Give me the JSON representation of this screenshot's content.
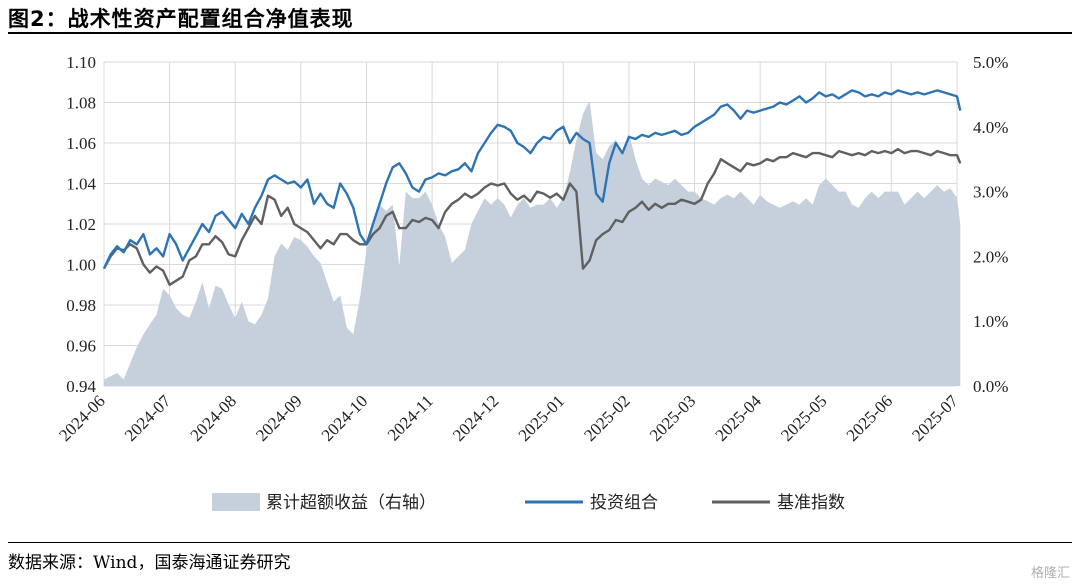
{
  "figure": {
    "title": "图2：战术性资产配置组合净值表现",
    "source": "数据来源：Wind，国泰海通证券研究",
    "watermark": "格隆汇"
  },
  "chart_data": {
    "type": "line+area",
    "title": "图2：战术性资产配置组合净值表现",
    "x_ticks": [
      "2024-06",
      "2024-07",
      "2024-08",
      "2024-09",
      "2024-10",
      "2024-11",
      "2024-12",
      "2025-01",
      "2025-02",
      "2025-03",
      "2025-04",
      "2025-05",
      "2025-06",
      "2025-07"
    ],
    "y_left": {
      "min": 0.94,
      "max": 1.1,
      "ticks": [
        "0.94",
        "0.96",
        "0.98",
        "1.00",
        "1.02",
        "1.04",
        "1.06",
        "1.08",
        "1.10"
      ]
    },
    "y_right": {
      "min": 0.0,
      "max": 5.0,
      "ticks": [
        "0.0%",
        "1.0%",
        "2.0%",
        "3.0%",
        "4.0%",
        "5.0%"
      ]
    },
    "grid": true,
    "legend_position": "bottom",
    "colors": {
      "area": "#c5d0dc",
      "portfolio": "#2e74b5",
      "benchmark": "#606060"
    },
    "series": [
      {
        "name": "累计超额收益（右轴）",
        "axis": "right",
        "kind": "area",
        "x": [
          0,
          0.1,
          0.2,
          0.3,
          0.4,
          0.5,
          0.6,
          0.7,
          0.8,
          0.9,
          1.0,
          1.1,
          1.2,
          1.3,
          1.4,
          1.5,
          1.6,
          1.7,
          1.8,
          1.9,
          2.0,
          2.1,
          2.2,
          2.3,
          2.4,
          2.5,
          2.6,
          2.7,
          2.8,
          2.9,
          3.0,
          3.1,
          3.2,
          3.3,
          3.4,
          3.5,
          3.6,
          3.7,
          3.8,
          3.9,
          4.0,
          4.1,
          4.2,
          4.3,
          4.4,
          4.5,
          4.6,
          4.7,
          4.8,
          4.9,
          5.0,
          5.1,
          5.2,
          5.3,
          5.4,
          5.5,
          5.6,
          5.7,
          5.8,
          5.9,
          6.0,
          6.1,
          6.2,
          6.3,
          6.4,
          6.5,
          6.6,
          6.7,
          6.8,
          6.9,
          7.0,
          7.1,
          7.2,
          7.3,
          7.4,
          7.5,
          7.6,
          7.7,
          7.8,
          7.9,
          8.0,
          8.1,
          8.2,
          8.3,
          8.4,
          8.5,
          8.6,
          8.7,
          8.8,
          8.9,
          9.0,
          9.1,
          9.2,
          9.3,
          9.4,
          9.5,
          9.6,
          9.7,
          9.8,
          9.9,
          10.0,
          10.1,
          10.2,
          10.3,
          10.4,
          10.5,
          10.6,
          10.7,
          10.8,
          10.9,
          11.0,
          11.1,
          11.2,
          11.3,
          11.4,
          11.5,
          11.6,
          11.7,
          11.8,
          11.9,
          12.0,
          12.1,
          12.2,
          12.3,
          12.4,
          12.5,
          12.6,
          12.7,
          12.8,
          12.9,
          13.0,
          13.05
        ],
        "values": [
          0.1,
          0.15,
          0.2,
          0.1,
          0.35,
          0.6,
          0.8,
          0.95,
          1.1,
          1.5,
          1.4,
          1.2,
          1.1,
          1.05,
          1.3,
          1.6,
          1.2,
          1.55,
          1.5,
          1.25,
          1.05,
          1.3,
          1.0,
          0.95,
          1.1,
          1.35,
          2.0,
          2.2,
          2.1,
          2.3,
          2.25,
          2.15,
          2.0,
          1.9,
          1.6,
          1.3,
          1.4,
          0.9,
          0.8,
          1.35,
          2.1,
          2.5,
          2.8,
          2.7,
          2.8,
          1.85,
          3.0,
          2.9,
          2.9,
          3.0,
          2.8,
          2.5,
          2.3,
          1.9,
          2.0,
          2.1,
          2.5,
          2.7,
          2.9,
          2.8,
          2.9,
          2.8,
          2.6,
          2.8,
          2.9,
          2.75,
          2.8,
          2.8,
          2.9,
          2.75,
          2.9,
          3.3,
          3.8,
          4.2,
          4.4,
          3.6,
          3.5,
          3.7,
          3.8,
          3.6,
          3.9,
          3.5,
          3.2,
          3.1,
          3.2,
          3.15,
          3.1,
          3.2,
          3.1,
          3.0,
          3.0,
          2.9,
          2.85,
          2.8,
          2.9,
          2.95,
          2.9,
          3.0,
          2.9,
          2.8,
          2.95,
          2.85,
          2.8,
          2.75,
          2.8,
          2.85,
          2.8,
          2.9,
          2.8,
          3.1,
          3.2,
          3.1,
          3.0,
          3.0,
          2.8,
          2.75,
          2.9,
          3.0,
          2.9,
          3.0,
          3.0,
          3.0,
          2.8,
          2.9,
          3.0,
          2.9,
          3.0,
          3.1,
          3.0,
          3.05,
          2.9,
          2.5
        ]
      },
      {
        "name": "投资组合",
        "axis": "left",
        "kind": "line",
        "x": [
          0,
          0.1,
          0.2,
          0.3,
          0.4,
          0.5,
          0.6,
          0.7,
          0.8,
          0.9,
          1.0,
          1.1,
          1.2,
          1.3,
          1.4,
          1.5,
          1.6,
          1.7,
          1.8,
          1.9,
          2.0,
          2.1,
          2.2,
          2.3,
          2.4,
          2.5,
          2.6,
          2.7,
          2.8,
          2.9,
          3.0,
          3.1,
          3.2,
          3.3,
          3.4,
          3.5,
          3.6,
          3.7,
          3.8,
          3.9,
          4.0,
          4.1,
          4.2,
          4.3,
          4.4,
          4.5,
          4.6,
          4.7,
          4.8,
          4.9,
          5.0,
          5.1,
          5.2,
          5.3,
          5.4,
          5.5,
          5.6,
          5.7,
          5.8,
          5.9,
          6.0,
          6.1,
          6.2,
          6.3,
          6.4,
          6.5,
          6.6,
          6.7,
          6.8,
          6.9,
          7.0,
          7.1,
          7.2,
          7.3,
          7.4,
          7.5,
          7.6,
          7.7,
          7.8,
          7.9,
          8.0,
          8.1,
          8.2,
          8.3,
          8.4,
          8.5,
          8.6,
          8.7,
          8.8,
          8.9,
          9.0,
          9.1,
          9.2,
          9.3,
          9.4,
          9.5,
          9.6,
          9.7,
          9.8,
          9.9,
          10.0,
          10.1,
          10.2,
          10.3,
          10.4,
          10.5,
          10.6,
          10.7,
          10.8,
          10.9,
          11.0,
          11.1,
          11.2,
          11.3,
          11.4,
          11.5,
          11.6,
          11.7,
          11.8,
          11.9,
          12.0,
          12.1,
          12.2,
          12.3,
          12.4,
          12.5,
          12.6,
          12.7,
          12.8,
          12.9,
          13.0,
          13.05
        ],
        "values": [
          0.998,
          1.005,
          1.009,
          1.006,
          1.012,
          1.01,
          1.015,
          1.005,
          1.008,
          1.004,
          1.015,
          1.01,
          1.002,
          1.008,
          1.014,
          1.02,
          1.016,
          1.024,
          1.026,
          1.022,
          1.018,
          1.025,
          1.02,
          1.028,
          1.034,
          1.042,
          1.044,
          1.042,
          1.04,
          1.041,
          1.038,
          1.042,
          1.03,
          1.035,
          1.03,
          1.028,
          1.04,
          1.035,
          1.028,
          1.015,
          1.01,
          1.02,
          1.03,
          1.04,
          1.048,
          1.05,
          1.045,
          1.038,
          1.036,
          1.042,
          1.043,
          1.045,
          1.044,
          1.046,
          1.047,
          1.05,
          1.046,
          1.055,
          1.06,
          1.065,
          1.069,
          1.068,
          1.066,
          1.06,
          1.058,
          1.055,
          1.06,
          1.063,
          1.062,
          1.066,
          1.068,
          1.06,
          1.065,
          1.062,
          1.06,
          1.035,
          1.031,
          1.05,
          1.06,
          1.055,
          1.063,
          1.062,
          1.064,
          1.063,
          1.065,
          1.064,
          1.065,
          1.066,
          1.064,
          1.065,
          1.068,
          1.07,
          1.072,
          1.074,
          1.078,
          1.079,
          1.076,
          1.072,
          1.076,
          1.075,
          1.076,
          1.077,
          1.078,
          1.08,
          1.079,
          1.081,
          1.083,
          1.08,
          1.082,
          1.085,
          1.083,
          1.084,
          1.082,
          1.084,
          1.086,
          1.085,
          1.083,
          1.084,
          1.083,
          1.085,
          1.084,
          1.086,
          1.085,
          1.084,
          1.085,
          1.084,
          1.085,
          1.086,
          1.085,
          1.084,
          1.083,
          1.076
        ]
      },
      {
        "name": "基准指数",
        "axis": "left",
        "kind": "line",
        "x": [
          0,
          0.1,
          0.2,
          0.3,
          0.4,
          0.5,
          0.6,
          0.7,
          0.8,
          0.9,
          1.0,
          1.1,
          1.2,
          1.3,
          1.4,
          1.5,
          1.6,
          1.7,
          1.8,
          1.9,
          2.0,
          2.1,
          2.2,
          2.3,
          2.4,
          2.5,
          2.6,
          2.7,
          2.8,
          2.9,
          3.0,
          3.1,
          3.2,
          3.3,
          3.4,
          3.5,
          3.6,
          3.7,
          3.8,
          3.9,
          4.0,
          4.1,
          4.2,
          4.3,
          4.4,
          4.5,
          4.6,
          4.7,
          4.8,
          4.9,
          5.0,
          5.1,
          5.2,
          5.3,
          5.4,
          5.5,
          5.6,
          5.7,
          5.8,
          5.9,
          6.0,
          6.1,
          6.2,
          6.3,
          6.4,
          6.5,
          6.6,
          6.7,
          6.8,
          6.9,
          7.0,
          7.1,
          7.2,
          7.3,
          7.4,
          7.5,
          7.6,
          7.7,
          7.8,
          7.9,
          8.0,
          8.1,
          8.2,
          8.3,
          8.4,
          8.5,
          8.6,
          8.7,
          8.8,
          8.9,
          9.0,
          9.1,
          9.2,
          9.3,
          9.4,
          9.5,
          9.6,
          9.7,
          9.8,
          9.9,
          10.0,
          10.1,
          10.2,
          10.3,
          10.4,
          10.5,
          10.6,
          10.7,
          10.8,
          10.9,
          11.0,
          11.1,
          11.2,
          11.3,
          11.4,
          11.5,
          11.6,
          11.7,
          11.8,
          11.9,
          12.0,
          12.1,
          12.2,
          12.3,
          12.4,
          12.5,
          12.6,
          12.7,
          12.8,
          12.9,
          13.0,
          13.05
        ],
        "values": [
          0.998,
          1.004,
          1.008,
          1.007,
          1.01,
          1.008,
          1.0,
          0.996,
          0.999,
          0.997,
          0.99,
          0.992,
          0.994,
          1.002,
          1.004,
          1.01,
          1.01,
          1.014,
          1.011,
          1.005,
          1.004,
          1.012,
          1.018,
          1.024,
          1.02,
          1.034,
          1.032,
          1.024,
          1.028,
          1.02,
          1.018,
          1.016,
          1.012,
          1.008,
          1.012,
          1.01,
          1.015,
          1.015,
          1.012,
          1.01,
          1.01,
          1.015,
          1.018,
          1.024,
          1.026,
          1.018,
          1.018,
          1.022,
          1.021,
          1.023,
          1.022,
          1.018,
          1.026,
          1.03,
          1.032,
          1.035,
          1.033,
          1.035,
          1.038,
          1.04,
          1.039,
          1.04,
          1.035,
          1.032,
          1.034,
          1.031,
          1.036,
          1.035,
          1.033,
          1.035,
          1.032,
          1.04,
          1.036,
          0.998,
          1.002,
          1.012,
          1.015,
          1.017,
          1.022,
          1.021,
          1.026,
          1.028,
          1.031,
          1.027,
          1.03,
          1.028,
          1.03,
          1.03,
          1.032,
          1.031,
          1.03,
          1.032,
          1.04,
          1.045,
          1.052,
          1.05,
          1.048,
          1.046,
          1.05,
          1.049,
          1.05,
          1.052,
          1.051,
          1.053,
          1.053,
          1.055,
          1.054,
          1.053,
          1.055,
          1.055,
          1.054,
          1.053,
          1.056,
          1.055,
          1.054,
          1.055,
          1.054,
          1.056,
          1.055,
          1.056,
          1.055,
          1.057,
          1.055,
          1.056,
          1.056,
          1.055,
          1.054,
          1.056,
          1.055,
          1.054,
          1.054,
          1.05
        ]
      }
    ]
  }
}
